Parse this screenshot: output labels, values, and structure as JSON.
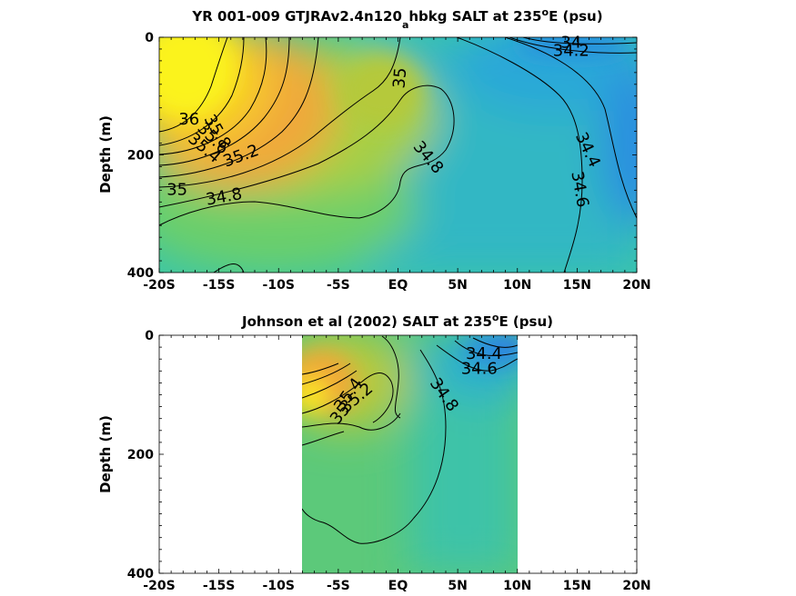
{
  "chart_data": [
    {
      "type": "contour",
      "title_main": "YR 001-009 GTJRAv2.4n120",
      "title_sub": "a",
      "title_rest": "hbkg SALT at 235",
      "title_sup": "o",
      "title_end": "E (psu)",
      "ylabel": "Depth (m)",
      "xlim": [
        -20,
        20
      ],
      "ylim": [
        0,
        400
      ],
      "x_ticks": [
        -20,
        -15,
        -10,
        -5,
        0,
        5,
        10,
        15,
        20
      ],
      "x_tick_labels": [
        "-20S",
        "-15S",
        "-10S",
        "-5S",
        "EQ",
        "5N",
        "10N",
        "15N",
        "20N"
      ],
      "y_ticks": [
        0,
        200,
        400
      ],
      "y_tick_labels": [
        "0",
        "200",
        "400"
      ],
      "data_extent": [
        -20,
        20
      ],
      "contour_labels": [
        {
          "text": "36",
          "lat": -17.5,
          "depth": 148,
          "rot": 0
        },
        {
          "text": "35.8",
          "lat": -15.5,
          "depth": 165,
          "rot": 60
        },
        {
          "text": "35.6",
          "lat": -15.8,
          "depth": 178,
          "rot": 45
        },
        {
          "text": "35.4",
          "lat": -16.5,
          "depth": 195,
          "rot": 40
        },
        {
          "text": "35.2",
          "lat": -13,
          "depth": 210,
          "rot": -20
        },
        {
          "text": "35",
          "lat": -18.5,
          "depth": 268,
          "rot": 0
        },
        {
          "text": "34.8",
          "lat": -14.5,
          "depth": 280,
          "rot": -10
        },
        {
          "text": "35",
          "lat": 0.6,
          "depth": 70,
          "rot": -85
        },
        {
          "text": "34.8",
          "lat": 2.2,
          "depth": 210,
          "rot": 50
        },
        {
          "text": "34.4",
          "lat": 15.5,
          "depth": 195,
          "rot": 65
        },
        {
          "text": "34.6",
          "lat": 14.8,
          "depth": 260,
          "rot": 80
        },
        {
          "text": "34",
          "lat": 14.5,
          "depth": 18,
          "rot": 0
        },
        {
          "text": "34.2",
          "lat": 14.5,
          "depth": 32,
          "rot": 0
        }
      ]
    },
    {
      "type": "contour",
      "title_main": "Johnson et al (2002) SALT at 235",
      "title_sup": "o",
      "title_end": "E (psu)",
      "ylabel": "Depth (m)",
      "xlim": [
        -20,
        20
      ],
      "ylim": [
        0,
        400
      ],
      "x_ticks": [
        -20,
        -15,
        -10,
        -5,
        0,
        5,
        10,
        15,
        20
      ],
      "x_tick_labels": [
        "-20S",
        "-15S",
        "-10S",
        "-5S",
        "EQ",
        "5N",
        "10N",
        "15N",
        "20N"
      ],
      "y_ticks": [
        0,
        200,
        400
      ],
      "y_tick_labels": [
        "0",
        "200",
        "400"
      ],
      "data_extent": [
        -8,
        10
      ],
      "contour_labels": [
        {
          "text": "35.4",
          "lat": -3.8,
          "depth": 105,
          "rot": -55
        },
        {
          "text": "35.2",
          "lat": -3.2,
          "depth": 112,
          "rot": -40
        },
        {
          "text": "35",
          "lat": -4.5,
          "depth": 138,
          "rot": -50
        },
        {
          "text": "34.8",
          "lat": 3.5,
          "depth": 105,
          "rot": 55
        },
        {
          "text": "34.4",
          "lat": 7.2,
          "depth": 40,
          "rot": 0
        },
        {
          "text": "34.6",
          "lat": 6.8,
          "depth": 65,
          "rot": 0
        }
      ]
    }
  ]
}
